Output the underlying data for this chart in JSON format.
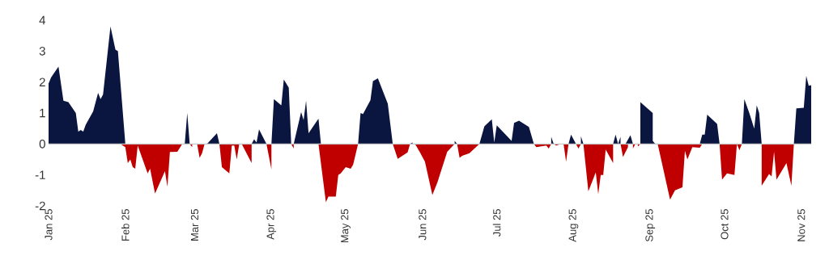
{
  "chart_data": {
    "type": "area",
    "xlim": [
      "2025-01-01",
      "2025-11-05"
    ],
    "ylim": [
      -2,
      4
    ],
    "xticks": [
      {
        "value": "2025-01-01",
        "label": "Jan 25"
      },
      {
        "value": "2025-02-01",
        "label": "Feb 25"
      },
      {
        "value": "2025-03-01",
        "label": "Mar 25"
      },
      {
        "value": "2025-04-01",
        "label": "Apr 25"
      },
      {
        "value": "2025-05-01",
        "label": "May 25"
      },
      {
        "value": "2025-06-01",
        "label": "Jun 25"
      },
      {
        "value": "2025-07-01",
        "label": "Jul 25"
      },
      {
        "value": "2025-08-01",
        "label": "Aug 25"
      },
      {
        "value": "2025-09-01",
        "label": "Sep 25"
      },
      {
        "value": "2025-10-01",
        "label": "Oct 25"
      },
      {
        "value": "2025-11-01",
        "label": "Nov 25"
      }
    ],
    "yticks": [
      -2,
      -1,
      0,
      1,
      2,
      3,
      4
    ],
    "ref_lines": [
      {
        "axis": "y",
        "value": 0,
        "color": "#c8c8c8"
      }
    ],
    "series": [
      {
        "color": "#0b1640",
        "x": [
          "2025-01-01",
          "2025-01-02",
          "2025-01-05",
          "2025-01-07",
          "2025-01-09",
          "2025-01-12",
          "2025-01-13",
          "2025-01-14",
          "2025-01-15",
          "2025-01-16",
          "2025-01-19",
          "2025-01-21",
          "2025-01-22",
          "2025-01-23",
          "2025-01-26",
          "2025-01-28",
          "2025-01-29",
          "2025-02-01",
          "2025-02-25",
          "2025-02-26",
          "2025-02-27",
          "2025-03-06",
          "2025-03-10",
          "2025-03-11",
          "2025-03-20",
          "2025-03-20",
          "2025-03-20",
          "2025-03-24",
          "2025-03-25",
          "2025-03-26",
          "2025-03-27",
          "2025-03-30",
          "2025-04-01",
          "2025-04-02",
          "2025-04-05",
          "2025-04-06",
          "2025-04-08",
          "2025-04-09",
          "2025-04-10",
          "2025-04-13",
          "2025-04-14",
          "2025-04-15",
          "2025-04-16",
          "2025-04-20",
          "2025-04-21",
          "2025-05-06",
          "2025-05-07",
          "2025-05-08",
          "2025-05-11",
          "2025-05-12",
          "2025-05-14",
          "2025-05-18",
          "2025-05-20",
          "2025-05-27",
          "2025-05-28",
          "2025-05-28",
          "2025-06-14",
          "2025-06-14",
          "2025-06-15",
          "2025-06-24",
          "2025-06-26",
          "2025-06-29",
          "2025-06-30",
          "2025-07-01",
          "2025-07-07",
          "2025-07-08",
          "2025-07-10",
          "2025-07-14",
          "2025-07-16",
          "2025-07-23",
          "2025-07-23",
          "2025-07-24",
          "2025-07-30",
          "2025-07-31",
          "2025-08-02",
          "2025-08-04",
          "2025-08-04",
          "2025-08-05",
          "2025-08-17",
          "2025-08-18",
          "2025-08-19",
          "2025-08-20",
          "2025-08-20",
          "2025-08-22",
          "2025-08-24",
          "2025-08-25",
          "2025-08-28",
          "2025-08-28",
          "2025-09-02",
          "2025-09-02",
          "2025-09-03",
          "2025-09-21",
          "2025-09-22",
          "2025-09-23",
          "2025-09-24",
          "2025-09-28",
          "2025-09-29",
          "2025-10-08",
          "2025-10-09",
          "2025-10-11",
          "2025-10-13",
          "2025-10-14",
          "2025-10-15",
          "2025-10-16",
          "2025-10-29",
          "2025-10-30",
          "2025-11-02",
          "2025-11-03",
          "2025-11-04",
          "2025-11-05"
        ],
        "values": [
          1.95,
          2.15,
          2.5,
          1.4,
          1.35,
          1.0,
          0.4,
          0.45,
          0.4,
          0.62,
          1.05,
          1.65,
          1.45,
          1.6,
          3.8,
          3.05,
          3.0,
          0,
          0,
          1.0,
          0,
          0,
          0.35,
          0,
          0,
          0.05,
          0,
          0,
          0.15,
          0.05,
          0.47,
          0,
          0,
          1.45,
          1.25,
          2.08,
          1.82,
          0,
          0,
          1.03,
          0.77,
          1.4,
          0.35,
          0.82,
          0,
          0,
          1.0,
          0.97,
          1.42,
          2.03,
          2.12,
          1.3,
          0,
          0,
          0.05,
          0,
          0,
          0.1,
          0,
          0,
          0.57,
          0.8,
          0.05,
          0.6,
          0.1,
          0.68,
          0.75,
          0.55,
          0,
          0,
          0.23,
          0,
          0,
          0.3,
          0,
          0,
          0.25,
          0,
          0,
          0.3,
          0,
          0.23,
          0,
          0,
          0.28,
          0,
          0,
          1.35,
          1.0,
          0.1,
          0,
          0,
          0.3,
          0.3,
          0.95,
          0.65,
          0,
          0,
          1.45,
          1.0,
          0.5,
          1.25,
          1.0,
          0,
          0,
          1.15,
          1.17,
          2.2,
          1.88,
          1.9
        ]
      },
      {
        "color": "#c00000",
        "x": [
          "2025-01-30",
          "2025-02-01",
          "2025-02-02",
          "2025-02-03",
          "2025-02-04",
          "2025-02-05",
          "2025-02-06",
          "2025-02-10",
          "2025-02-11",
          "2025-02-13",
          "2025-02-17",
          "2025-02-18",
          "2025-02-19",
          "2025-02-22",
          "2025-02-24",
          "2025-02-27",
          "2025-02-28",
          "2025-02-28",
          "2025-03-02",
          "2025-03-03",
          "2025-03-04",
          "2025-03-05",
          "2025-03-11",
          "2025-03-12",
          "2025-03-15",
          "2025-03-16",
          "2025-03-17",
          "2025-03-18",
          "2025-03-19",
          "2025-03-20",
          "2025-03-24",
          "2025-03-24",
          "2025-03-30",
          "2025-04-01",
          "2025-04-01",
          "2025-04-09",
          "2025-04-10",
          "2025-04-10",
          "2025-04-20",
          "2025-04-23",
          "2025-04-24",
          "2025-04-27",
          "2025-04-28",
          "2025-04-29",
          "2025-05-01",
          "2025-05-03",
          "2025-05-04",
          "2025-05-06",
          "2025-05-20",
          "2025-05-22",
          "2025-05-26",
          "2025-05-27",
          "2025-05-29",
          "2025-05-31",
          "2025-06-02",
          "2025-06-05",
          "2025-06-07",
          "2025-06-11",
          "2025-06-14",
          "2025-06-15",
          "2025-06-16",
          "2025-06-17",
          "2025-06-20",
          "2025-06-24",
          "2025-07-16",
          "2025-07-17",
          "2025-07-21",
          "2025-07-22",
          "2025-07-23",
          "2025-07-24",
          "2025-07-25",
          "2025-07-27",
          "2025-07-28",
          "2025-07-29",
          "2025-07-30",
          "2025-08-02",
          "2025-08-03",
          "2025-08-04",
          "2025-08-05",
          "2025-08-07",
          "2025-08-10",
          "2025-08-11",
          "2025-08-12",
          "2025-08-13",
          "2025-08-14",
          "2025-08-17",
          "2025-08-17",
          "2025-08-20",
          "2025-08-21",
          "2025-08-23",
          "2025-08-23",
          "2025-08-25",
          "2025-08-25",
          "2025-08-26",
          "2025-08-27",
          "2025-08-27",
          "2025-08-28",
          "2025-09-04",
          "2025-09-09",
          "2025-09-11",
          "2025-09-14",
          "2025-09-15",
          "2025-09-16",
          "2025-09-18",
          "2025-09-21",
          "2025-09-22",
          "2025-09-29",
          "2025-09-30",
          "2025-10-02",
          "2025-10-05",
          "2025-10-06",
          "2025-10-06",
          "2025-10-07",
          "2025-10-08",
          "2025-10-16",
          "2025-10-16",
          "2025-10-19",
          "2025-10-20",
          "2025-10-21",
          "2025-10-22",
          "2025-10-26",
          "2025-10-28",
          "2025-10-29"
        ],
        "values": [
          0,
          -0.1,
          -0.62,
          -0.5,
          -0.75,
          -0.8,
          -0.05,
          -0.95,
          -0.8,
          -1.6,
          -0.88,
          -1.38,
          -0.26,
          -0.25,
          0,
          0,
          -0.1,
          0,
          0,
          -0.45,
          -0.3,
          0,
          0,
          -0.75,
          -0.95,
          -0.05,
          -0.05,
          -0.5,
          0,
          0,
          -0.62,
          0,
          0,
          -0.82,
          0,
          0,
          -0.15,
          0,
          0,
          -1.88,
          -1.7,
          -1.7,
          -1.0,
          -0.95,
          -0.75,
          -0.8,
          -0.67,
          0,
          0,
          -0.48,
          -0.27,
          0,
          0,
          -0.27,
          -0.57,
          -1.65,
          -1.25,
          -0.25,
          0,
          0,
          -0.45,
          -0.38,
          -0.3,
          0,
          0,
          -0.1,
          -0.05,
          -0.15,
          0,
          0,
          -0.05,
          0,
          0,
          -0.57,
          0,
          0,
          -0.15,
          0,
          0,
          -1.53,
          -0.92,
          -1.62,
          -1.0,
          -1.0,
          -0.18,
          -0.62,
          0,
          0,
          -0.42,
          -0.1,
          0,
          0,
          -0.15,
          0,
          0,
          -0.08,
          0,
          0,
          -1.8,
          -1.5,
          -1.4,
          -0.22,
          -0.5,
          -0.1,
          -0.12,
          0,
          0,
          -1.15,
          -0.95,
          -1.0,
          0,
          0,
          -0.2,
          0,
          0,
          -1.35,
          -0.97,
          -1.05,
          -0.25,
          -1.15,
          -0.62,
          -1.35,
          0
        ]
      }
    ]
  }
}
